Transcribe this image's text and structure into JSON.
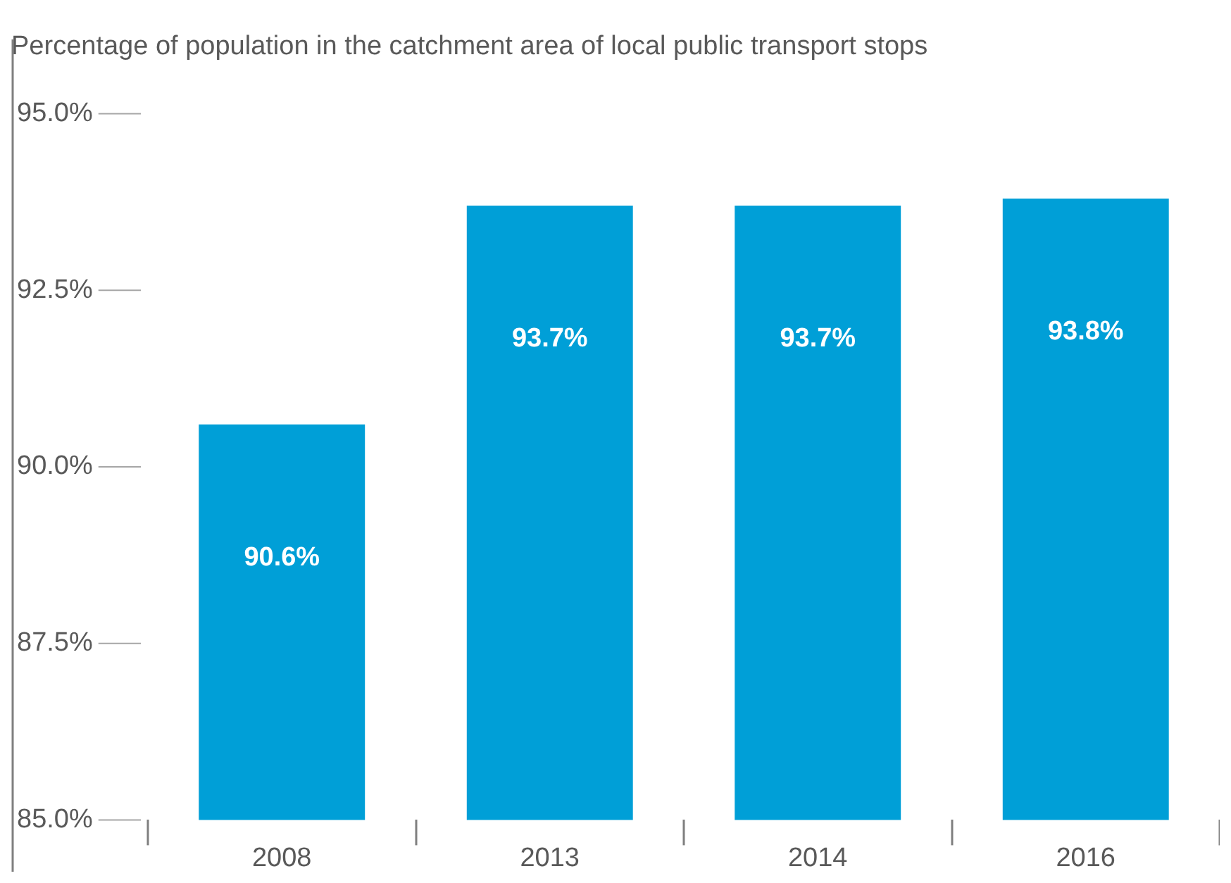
{
  "chart_data": {
    "type": "bar",
    "title": "Percentage of population in the catchment area of local public transport stops",
    "categories": [
      "2008",
      "2013",
      "2014",
      "2016"
    ],
    "values": [
      90.6,
      93.7,
      93.7,
      93.8
    ],
    "value_labels": [
      "90.6%",
      "93.7%",
      "93.7%",
      "93.8%"
    ],
    "color": "#009fd7",
    "ylim": [
      85,
      95
    ],
    "yticks": [
      {
        "value": 85,
        "label": "85.0%"
      },
      {
        "value": 87.5,
        "label": "87.5%"
      },
      {
        "value": 90,
        "label": "90.0%"
      },
      {
        "value": 92.5,
        "label": "92.5%"
      },
      {
        "value": 95,
        "label": "95.0%"
      }
    ],
    "grid": false,
    "legend": false
  }
}
